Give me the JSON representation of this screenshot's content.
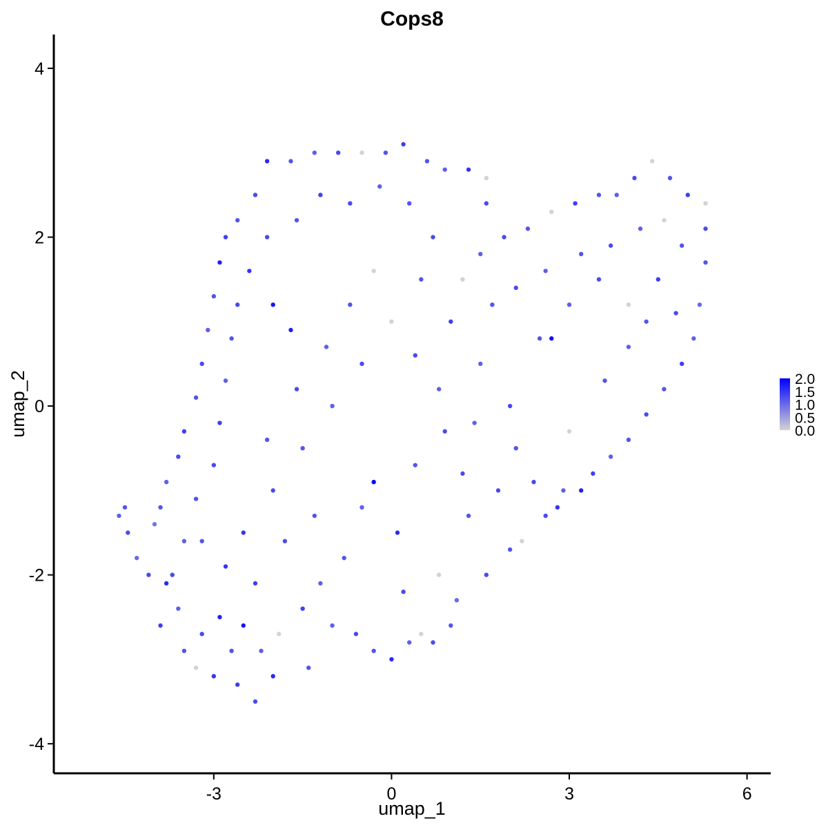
{
  "chart_data": {
    "type": "scatter",
    "title": "Cops8",
    "xlabel": "umap_1",
    "ylabel": "umap_2",
    "xlim": [
      -5.7,
      6.4
    ],
    "ylim": [
      -4.35,
      4.4
    ],
    "x_ticks": [
      -3,
      0,
      3,
      6
    ],
    "y_ticks": [
      -4,
      -2,
      0,
      2,
      4
    ],
    "x_tick_labels": [
      "-3",
      "0",
      "3",
      "6"
    ],
    "y_tick_labels": [
      "-4",
      "-2",
      "0",
      "2",
      "4"
    ],
    "grid": false,
    "legend_position": "right",
    "legend": {
      "type": "colorbar",
      "labels": [
        "2.0",
        "1.5",
        "1.0",
        "0.5",
        "0.0"
      ],
      "values": [
        2.0,
        1.5,
        1.0,
        0.5,
        0.0
      ],
      "min": 0.0,
      "max": 2.0
    },
    "colors": {
      "low": "#d3d3d3",
      "high": "#0000ff"
    },
    "points": [
      [
        -4.6,
        -1.3,
        1.1
      ],
      [
        -4.5,
        -1.2,
        1.2
      ],
      [
        -4.45,
        -1.5,
        1.3
      ],
      [
        -4.3,
        -1.8,
        1.0
      ],
      [
        -4.0,
        -1.4,
        0.9
      ],
      [
        -4.1,
        -2.0,
        1.3
      ],
      [
        -3.9,
        -2.6,
        1.4
      ],
      [
        -3.8,
        -2.1,
        1.6
      ],
      [
        -3.6,
        -2.4,
        1.1
      ],
      [
        -3.5,
        -2.9,
        1.2
      ],
      [
        -3.3,
        -3.1,
        0.0
      ],
      [
        -3.2,
        -2.7,
        1.3
      ],
      [
        -3.0,
        -3.2,
        1.5
      ],
      [
        -2.9,
        -2.5,
        1.7
      ],
      [
        -2.7,
        -2.9,
        1.2
      ],
      [
        -2.6,
        -3.3,
        1.4
      ],
      [
        -2.5,
        -2.6,
        1.8
      ],
      [
        -2.3,
        -3.5,
        1.3
      ],
      [
        -2.2,
        -2.9,
        1.1
      ],
      [
        -2.0,
        -3.2,
        1.6
      ],
      [
        -1.9,
        -2.7,
        0.0
      ],
      [
        -1.4,
        -3.1,
        1.2
      ],
      [
        -1.5,
        -2.4,
        1.4
      ],
      [
        -1.0,
        -2.6,
        1.1
      ],
      [
        -0.6,
        -2.7,
        1.3
      ],
      [
        -0.3,
        -2.9,
        1.2
      ],
      [
        0.0,
        -3.0,
        1.6
      ],
      [
        0.3,
        -2.8,
        1.1
      ],
      [
        0.5,
        -2.7,
        0.0
      ],
      [
        0.7,
        -2.8,
        1.3
      ],
      [
        1.0,
        -2.6,
        1.2
      ],
      [
        1.1,
        -2.3,
        1.0
      ],
      [
        1.6,
        -2.0,
        1.3
      ],
      [
        2.0,
        -1.7,
        1.2
      ],
      [
        2.2,
        -1.6,
        0.0
      ],
      [
        2.6,
        -1.3,
        1.3
      ],
      [
        2.8,
        -1.2,
        1.5
      ],
      [
        3.2,
        -1.0,
        1.7
      ],
      [
        3.4,
        -0.8,
        1.4
      ],
      [
        3.7,
        -0.6,
        1.1
      ],
      [
        4.0,
        -0.4,
        1.2
      ],
      [
        4.3,
        -0.1,
        1.3
      ],
      [
        4.6,
        0.2,
        1.2
      ],
      [
        4.9,
        0.5,
        1.4
      ],
      [
        5.1,
        0.8,
        1.1
      ],
      [
        5.2,
        1.2,
        1.0
      ],
      [
        5.3,
        1.7,
        1.2
      ],
      [
        5.3,
        2.1,
        1.3
      ],
      [
        5.3,
        2.4,
        0.0
      ],
      [
        5.0,
        2.5,
        1.4
      ],
      [
        4.7,
        2.7,
        1.2
      ],
      [
        4.4,
        2.9,
        0.0
      ],
      [
        4.1,
        2.7,
        1.3
      ],
      [
        3.8,
        2.5,
        1.1
      ],
      [
        3.5,
        2.5,
        1.2
      ],
      [
        3.1,
        2.4,
        1.4
      ],
      [
        2.7,
        2.3,
        0.0
      ],
      [
        2.3,
        2.1,
        1.2
      ],
      [
        1.9,
        2.0,
        1.3
      ],
      [
        1.5,
        1.8,
        1.1
      ],
      [
        1.6,
        2.4,
        1.3
      ],
      [
        1.6,
        2.7,
        0.0
      ],
      [
        1.3,
        2.8,
        1.5
      ],
      [
        0.9,
        2.8,
        1.1
      ],
      [
        0.6,
        2.9,
        1.2
      ],
      [
        0.2,
        3.1,
        1.4
      ],
      [
        -0.1,
        3.0,
        1.2
      ],
      [
        -0.5,
        3.0,
        0.0
      ],
      [
        -0.9,
        3.0,
        1.3
      ],
      [
        -1.3,
        3.0,
        1.1
      ],
      [
        -1.7,
        2.9,
        1.2
      ],
      [
        -2.1,
        2.9,
        1.6
      ],
      [
        -2.3,
        2.5,
        1.3
      ],
      [
        -2.6,
        2.2,
        1.2
      ],
      [
        -2.8,
        2.0,
        1.4
      ],
      [
        -2.9,
        1.7,
        1.7
      ],
      [
        -3.0,
        1.3,
        1.2
      ],
      [
        -3.1,
        0.9,
        1.1
      ],
      [
        -3.2,
        0.5,
        1.3
      ],
      [
        -3.3,
        0.1,
        1.2
      ],
      [
        -3.5,
        -0.3,
        1.4
      ],
      [
        -3.6,
        -0.6,
        1.3
      ],
      [
        -3.8,
        -0.9,
        1.1
      ],
      [
        -3.9,
        -1.2,
        1.2
      ],
      [
        -2.5,
        -1.5,
        1.5
      ],
      [
        -2.0,
        -1.0,
        1.3
      ],
      [
        -1.5,
        -0.5,
        1.2
      ],
      [
        -1.0,
        0.0,
        1.1
      ],
      [
        -0.5,
        0.5,
        1.3
      ],
      [
        0.0,
        1.0,
        0.0
      ],
      [
        0.5,
        1.5,
        1.2
      ],
      [
        1.0,
        1.0,
        1.4
      ],
      [
        1.5,
        0.5,
        1.1
      ],
      [
        2.0,
        0.0,
        1.3
      ],
      [
        2.5,
        0.8,
        1.2
      ],
      [
        3.0,
        1.2,
        1.1
      ],
      [
        3.5,
        1.5,
        1.3
      ],
      [
        4.0,
        1.2,
        0.0
      ],
      [
        4.5,
        1.5,
        1.4
      ],
      [
        4.3,
        1.0,
        1.2
      ],
      [
        -0.3,
        -0.9,
        2.0
      ],
      [
        2.7,
        0.8,
        1.9
      ],
      [
        -2.0,
        1.2,
        1.8
      ],
      [
        -1.7,
        0.9,
        1.7
      ],
      [
        0.1,
        -1.5,
        1.6
      ],
      [
        1.2,
        -0.8,
        1.3
      ],
      [
        -0.8,
        -1.8,
        1.2
      ],
      [
        -1.2,
        -2.1,
        1.1
      ],
      [
        0.8,
        -2.0,
        0.0
      ],
      [
        0.2,
        -2.2,
        1.3
      ],
      [
        -2.8,
        -1.9,
        1.5
      ],
      [
        -3.2,
        -1.6,
        1.2
      ],
      [
        -2.3,
        -2.1,
        1.4
      ],
      [
        -1.8,
        -1.6,
        1.3
      ],
      [
        -1.3,
        -1.3,
        1.2
      ],
      [
        -0.5,
        -1.2,
        1.1
      ],
      [
        0.4,
        -0.7,
        1.2
      ],
      [
        0.9,
        -0.3,
        1.3
      ],
      [
        1.4,
        -0.2,
        1.1
      ],
      [
        2.1,
        -0.5,
        1.2
      ],
      [
        2.4,
        -0.9,
        1.3
      ],
      [
        3.0,
        -0.3,
        0.0
      ],
      [
        3.6,
        0.3,
        1.2
      ],
      [
        4.0,
        0.7,
        1.1
      ],
      [
        4.8,
        1.1,
        1.3
      ],
      [
        4.9,
        1.9,
        1.2
      ],
      [
        4.6,
        2.2,
        0.0
      ],
      [
        4.2,
        2.1,
        1.1
      ],
      [
        3.7,
        1.9,
        1.3
      ],
      [
        3.2,
        1.8,
        1.2
      ],
      [
        2.6,
        1.6,
        1.1
      ],
      [
        2.1,
        1.4,
        1.3
      ],
      [
        1.7,
        1.2,
        1.2
      ],
      [
        1.2,
        1.5,
        0.0
      ],
      [
        0.7,
        2.0,
        1.3
      ],
      [
        0.3,
        2.4,
        1.2
      ],
      [
        -0.2,
        2.6,
        1.1
      ],
      [
        -0.7,
        2.4,
        1.3
      ],
      [
        -1.2,
        2.5,
        1.4
      ],
      [
        -1.6,
        2.2,
        1.2
      ],
      [
        -2.1,
        2.0,
        1.3
      ],
      [
        -2.4,
        1.6,
        1.5
      ],
      [
        -2.6,
        1.2,
        1.3
      ],
      [
        -2.7,
        0.8,
        1.2
      ],
      [
        -2.8,
        0.3,
        1.1
      ],
      [
        -2.9,
        -0.2,
        1.4
      ],
      [
        -3.0,
        -0.7,
        1.3
      ],
      [
        -3.3,
        -1.1,
        1.2
      ],
      [
        -3.5,
        -1.6,
        1.1
      ],
      [
        -3.7,
        -2.0,
        1.3
      ],
      [
        -2.1,
        -0.4,
        1.2
      ],
      [
        -1.6,
        0.2,
        1.3
      ],
      [
        -1.1,
        0.7,
        1.1
      ],
      [
        -0.7,
        1.2,
        1.2
      ],
      [
        -0.3,
        1.6,
        0.0
      ],
      [
        0.4,
        0.6,
        1.3
      ],
      [
        0.8,
        0.2,
        1.1
      ],
      [
        1.3,
        -1.3,
        1.2
      ],
      [
        1.8,
        -1.0,
        1.3
      ],
      [
        2.9,
        -1.0,
        1.1
      ]
    ]
  }
}
